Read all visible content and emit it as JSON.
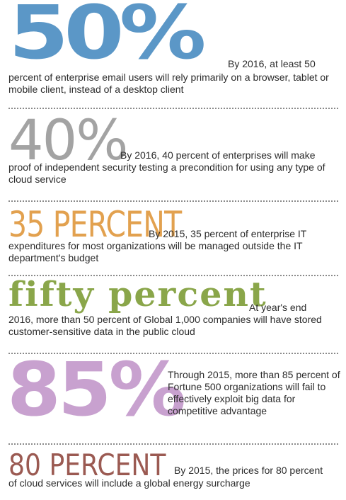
{
  "stats": [
    {
      "big": "50%",
      "inline": "By 2016, at least 50",
      "rest": "percent of enterprise email users will rely primarily on a browser, tablet or mobile client, instead of a desktop client",
      "color": "#5b97c7"
    },
    {
      "big": "40%",
      "inline": "By 2016, 40 percent of enterprises will make",
      "rest": "proof of independent security testing a precondition for using any type of cloud service",
      "color": "#a3a3a3"
    },
    {
      "big": "35 PERCENT",
      "inline": "By 2015, 35 percent of enterprise IT",
      "rest": "expenditures for most organizations will be managed outside the IT department's budget",
      "color": "#e2a14f"
    },
    {
      "big": "fifty percent",
      "inline": "At year's end",
      "rest": "2016, more than 50 percent of Global 1,000 companies will have stored customer-sensitive data in the public cloud",
      "color": "#8aa64a"
    },
    {
      "big": "85%",
      "text": "Through 2015, more than 85 percent of Fortune 500 organizations will fail to effectively exploit big data for competitive advantage",
      "color": "#c8a1cf"
    },
    {
      "big": "80 PERCENT",
      "inline": "By 2015, the prices for 80 percent",
      "rest": "of cloud services will include a global energy surcharge",
      "color": "#9b5a52"
    }
  ]
}
